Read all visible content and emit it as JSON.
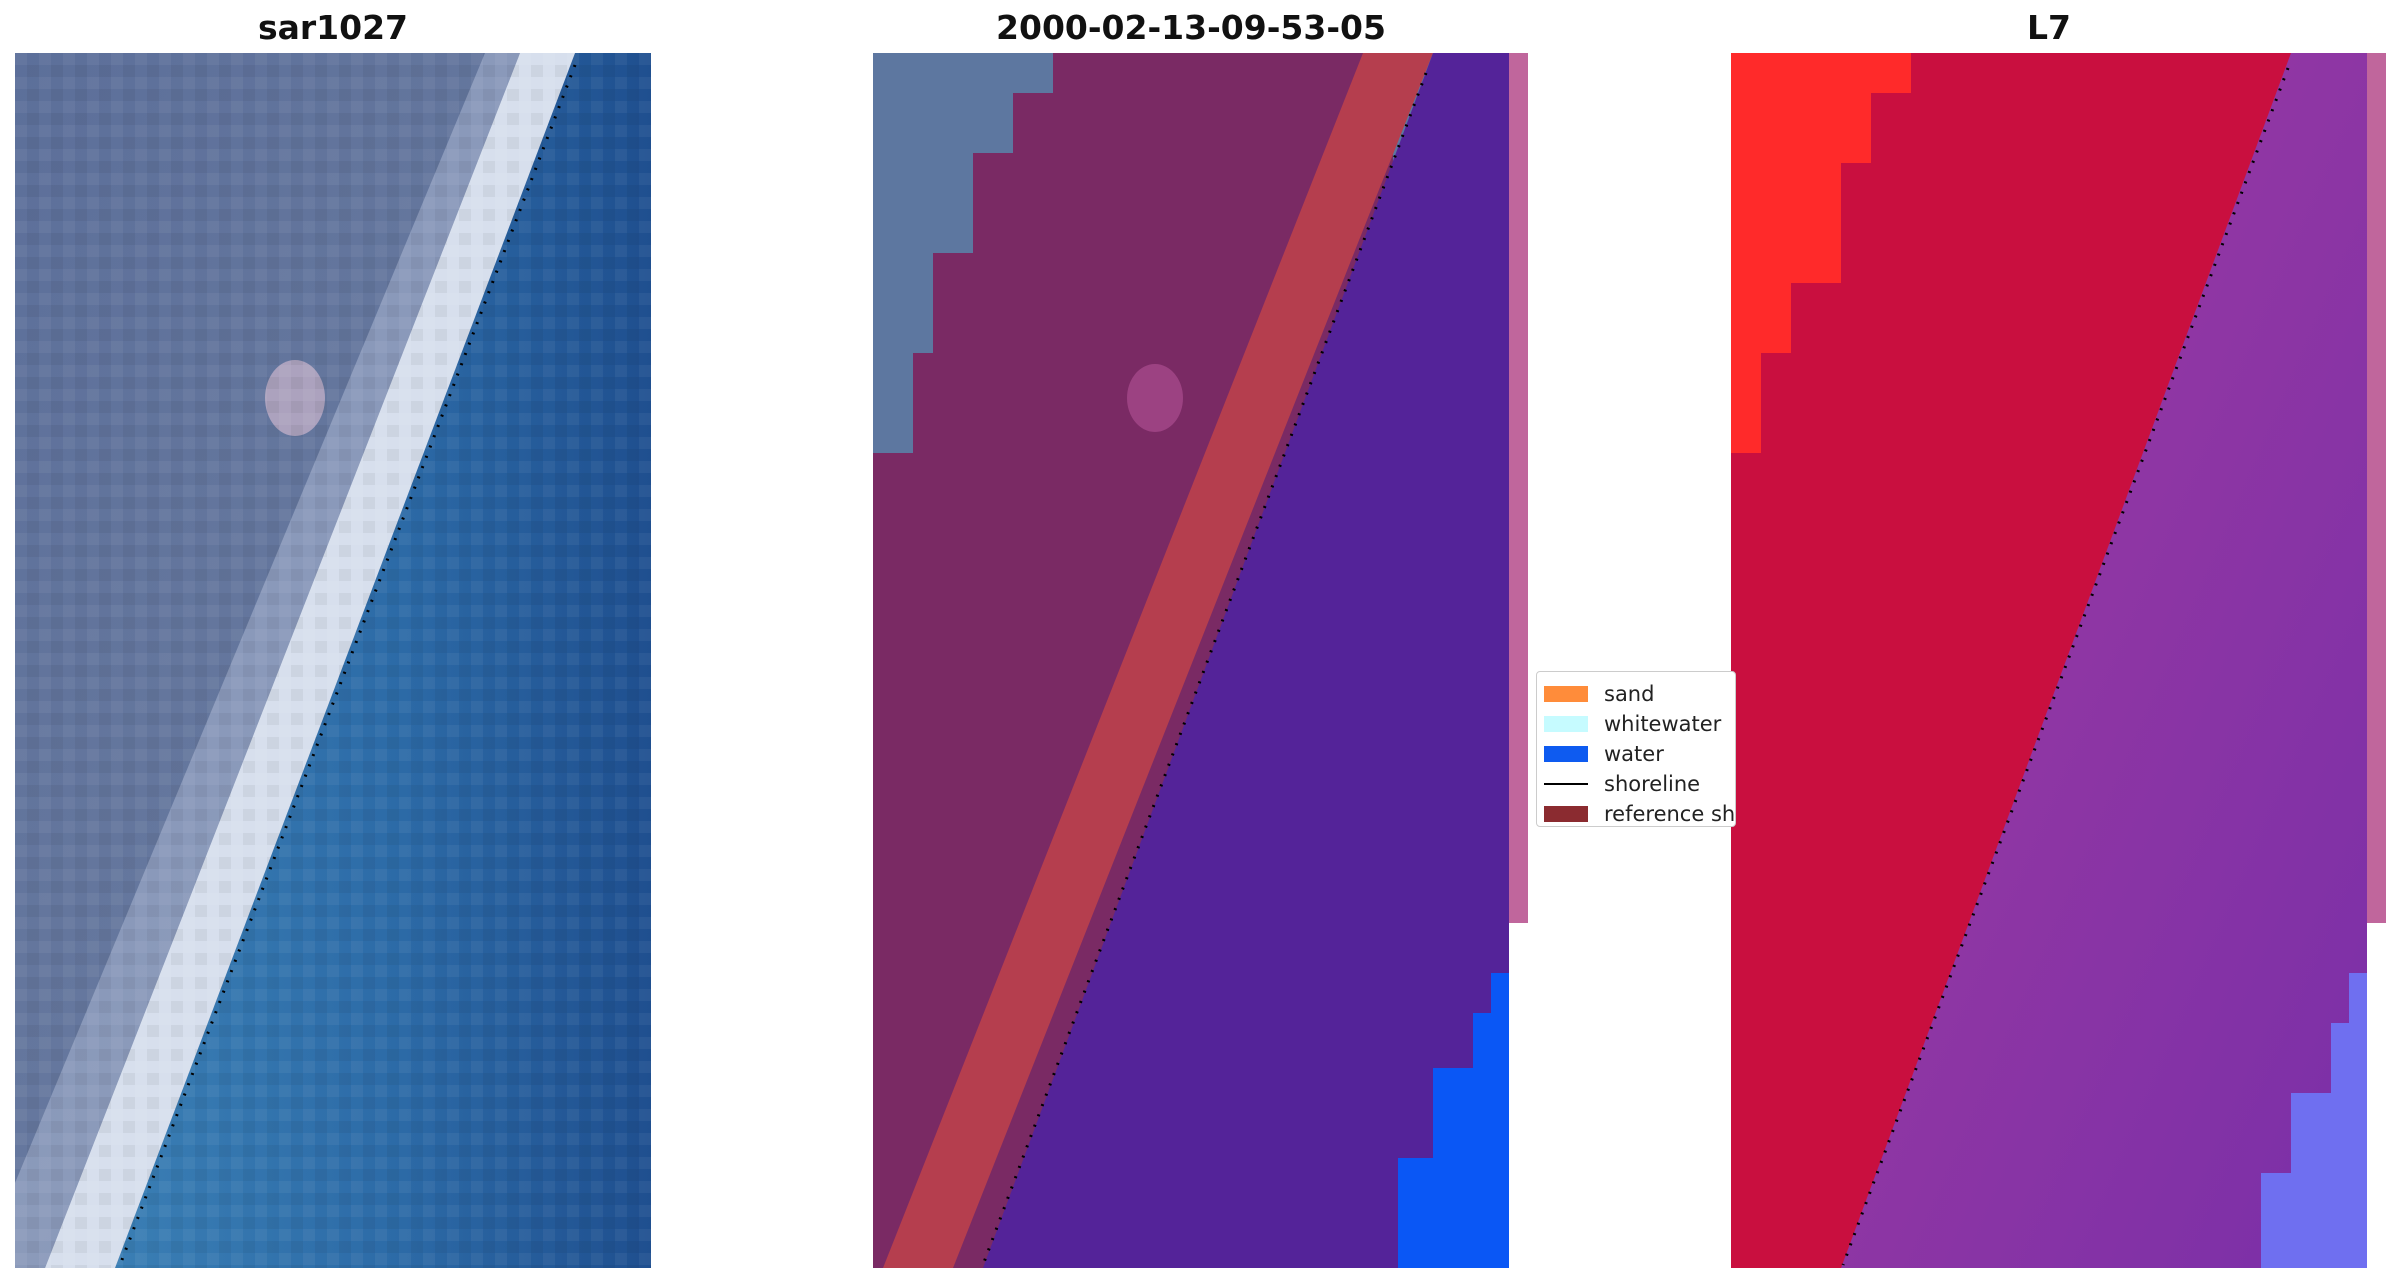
{
  "panels": {
    "rgb": {
      "title": "sar1027"
    },
    "classification": {
      "title": "2000-02-13-09-53-05"
    },
    "satellite": {
      "title": "L7"
    }
  },
  "legend": {
    "items": [
      {
        "label": "sand",
        "color": "#ff8c3a",
        "kind": "patch"
      },
      {
        "label": "whitewater",
        "color": "#c6fbff",
        "kind": "patch"
      },
      {
        "label": "water",
        "color": "#0e5bf0",
        "kind": "patch"
      },
      {
        "label": "shoreline",
        "color": "#000000",
        "kind": "line"
      },
      {
        "label": "reference shoreline",
        "color": "#8b2b30",
        "kind": "patch"
      }
    ]
  },
  "colors": {
    "rgb_land": "#5a6f9c",
    "rgb_beach": "#dfe6f2",
    "rgb_water": "#2c6aa8",
    "class_land_rgb": "#5d7aa0",
    "class_land": "#7a2a64",
    "class_sand_band": "#b53e4e",
    "class_water": "#542399",
    "class_water_edge": "#0a57f5",
    "class_edge_strip": "#c0669c",
    "sat_land_bright": "#ff1a1f",
    "sat_land": "#c90f3f",
    "sat_water": "#8b35a8",
    "sat_water_corner": "#6f6ff0",
    "sat_edge_strip": "#c0669c",
    "shoreline": "#000000"
  }
}
